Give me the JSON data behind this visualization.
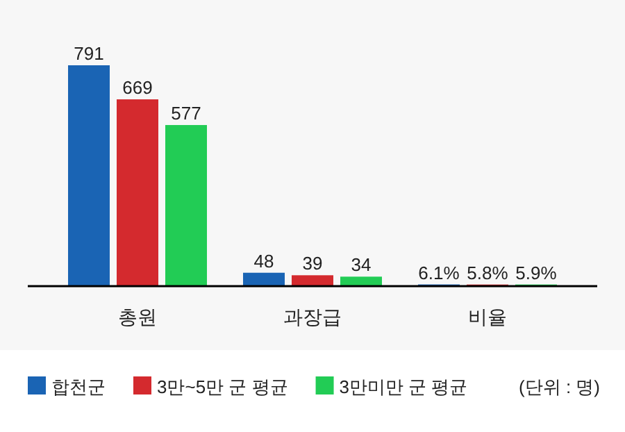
{
  "chart_data": {
    "type": "bar",
    "categories": [
      "총원",
      "과장급",
      "비율"
    ],
    "series": [
      {
        "name": "합천군",
        "color": "#1a64b4",
        "values": [
          791,
          48,
          6.1
        ],
        "value_labels": [
          "791",
          "48",
          "6.1%"
        ]
      },
      {
        "name": "3만~5만 군 평균",
        "color": "#d42a2e",
        "values": [
          669,
          39,
          5.8
        ],
        "value_labels": [
          "669",
          "39",
          "5.8%"
        ]
      },
      {
        "name": "3만미만 군 평균",
        "color": "#22cc55",
        "values": [
          577,
          34,
          5.9
        ],
        "value_labels": [
          "577",
          "34",
          "5.9%"
        ]
      }
    ],
    "legend": "bottom",
    "annotations": [
      "(단위 : 명)"
    ]
  }
}
